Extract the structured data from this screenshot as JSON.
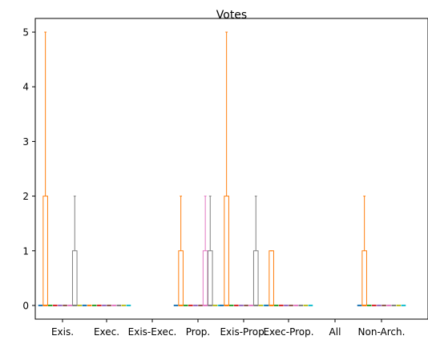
{
  "chart_data": {
    "type": "boxplot",
    "title": "Votes",
    "xlabel": "",
    "ylabel": "",
    "ylim": [
      -0.25,
      5.25
    ],
    "yticks": [
      0,
      1,
      2,
      3,
      4,
      5
    ],
    "grid": false,
    "categories": [
      "Exis.",
      "Exec.",
      "Exis-Exec.",
      "Prop.",
      "Exis-Prop.",
      "Exec-Prop.",
      "All",
      "Non-Arch."
    ],
    "series_colors": [
      "#1f77b4",
      "#ff7f0e",
      "#2ca02c",
      "#d62728",
      "#9467bd",
      "#8c564b",
      "#e377c2",
      "#7f7f7f",
      "#bcbd22",
      "#17becf"
    ],
    "boxes": [
      [
        {
          "min": 0,
          "q1": 0,
          "median": 0,
          "q3": 0,
          "max": 0
        },
        {
          "min": 0,
          "q1": 0,
          "median": 0,
          "q3": 2,
          "max": 5
        },
        {
          "min": 0,
          "q1": 0,
          "median": 0,
          "q3": 0,
          "max": 0
        },
        {
          "min": 0,
          "q1": 0,
          "median": 0,
          "q3": 0,
          "max": 0
        },
        {
          "min": 0,
          "q1": 0,
          "median": 0,
          "q3": 0,
          "max": 0
        },
        {
          "min": 0,
          "q1": 0,
          "median": 0,
          "q3": 0,
          "max": 0
        },
        {
          "min": 0,
          "q1": 0,
          "median": 0,
          "q3": 0,
          "max": 0
        },
        {
          "min": 0,
          "q1": 0,
          "median": 0,
          "q3": 1,
          "max": 2
        },
        {
          "min": 0,
          "q1": 0,
          "median": 0,
          "q3": 0,
          "max": 0
        },
        {
          "min": 0,
          "q1": 0,
          "median": 0,
          "q3": 0,
          "max": 0
        }
      ],
      [
        {
          "min": 0,
          "q1": 0,
          "median": 0,
          "q3": 0,
          "max": 0
        },
        {
          "min": 0,
          "q1": 0,
          "median": 0,
          "q3": 0,
          "max": 0
        },
        {
          "min": 0,
          "q1": 0,
          "median": 0,
          "q3": 0,
          "max": 0
        },
        {
          "min": 0,
          "q1": 0,
          "median": 0,
          "q3": 0,
          "max": 0
        },
        {
          "min": 0,
          "q1": 0,
          "median": 0,
          "q3": 0,
          "max": 0
        },
        {
          "min": 0,
          "q1": 0,
          "median": 0,
          "q3": 0,
          "max": 0
        },
        {
          "min": 0,
          "q1": 0,
          "median": 0,
          "q3": 0,
          "max": 0
        },
        {
          "min": 0,
          "q1": 0,
          "median": 0,
          "q3": 0,
          "max": 0
        },
        {
          "min": 0,
          "q1": 0,
          "median": 0,
          "q3": 0,
          "max": 0
        },
        {
          "min": 0,
          "q1": 0,
          "median": 0,
          "q3": 0,
          "max": 0
        }
      ],
      [],
      [
        {
          "min": 0,
          "q1": 0,
          "median": 0,
          "q3": 0,
          "max": 0
        },
        {
          "min": 0,
          "q1": 0,
          "median": 0,
          "q3": 1,
          "max": 2
        },
        {
          "min": 0,
          "q1": 0,
          "median": 0,
          "q3": 0,
          "max": 0
        },
        {
          "min": 0,
          "q1": 0,
          "median": 0,
          "q3": 0,
          "max": 0
        },
        {
          "min": 0,
          "q1": 0,
          "median": 0,
          "q3": 0,
          "max": 0
        },
        {
          "min": 0,
          "q1": 0,
          "median": 0,
          "q3": 0,
          "max": 0
        },
        {
          "min": 0,
          "q1": 0,
          "median": 0,
          "q3": 1,
          "max": 2
        },
        {
          "min": 0,
          "q1": 0,
          "median": 0,
          "q3": 1,
          "max": 2
        },
        {
          "min": 0,
          "q1": 0,
          "median": 0,
          "q3": 0,
          "max": 0
        },
        {
          "min": 0,
          "q1": 0,
          "median": 0,
          "q3": 0,
          "max": 0
        }
      ],
      [
        {
          "min": 0,
          "q1": 0,
          "median": 0,
          "q3": 0,
          "max": 0
        },
        {
          "min": 0,
          "q1": 0,
          "median": 0,
          "q3": 2,
          "max": 5
        },
        {
          "min": 0,
          "q1": 0,
          "median": 0,
          "q3": 0,
          "max": 0
        },
        {
          "min": 0,
          "q1": 0,
          "median": 0,
          "q3": 0,
          "max": 0
        },
        {
          "min": 0,
          "q1": 0,
          "median": 0,
          "q3": 0,
          "max": 0
        },
        {
          "min": 0,
          "q1": 0,
          "median": 0,
          "q3": 0,
          "max": 0
        },
        {
          "min": 0,
          "q1": 0,
          "median": 0,
          "q3": 0,
          "max": 0
        },
        {
          "min": 0,
          "q1": 0,
          "median": 0,
          "q3": 1,
          "max": 2
        },
        {
          "min": 0,
          "q1": 0,
          "median": 0,
          "q3": 0,
          "max": 0
        },
        {
          "min": 0,
          "q1": 0,
          "median": 0,
          "q3": 0,
          "max": 0
        }
      ],
      [
        {
          "min": 0,
          "q1": 0,
          "median": 0,
          "q3": 0,
          "max": 0
        },
        {
          "min": 0,
          "q1": 0,
          "median": 0,
          "q3": 1,
          "max": 1
        },
        {
          "min": 0,
          "q1": 0,
          "median": 0,
          "q3": 0,
          "max": 0
        },
        {
          "min": 0,
          "q1": 0,
          "median": 0,
          "q3": 0,
          "max": 0
        },
        {
          "min": 0,
          "q1": 0,
          "median": 0,
          "q3": 0,
          "max": 0
        },
        {
          "min": 0,
          "q1": 0,
          "median": 0,
          "q3": 0,
          "max": 0
        },
        {
          "min": 0,
          "q1": 0,
          "median": 0,
          "q3": 0,
          "max": 0
        },
        {
          "min": 0,
          "q1": 0,
          "median": 0,
          "q3": 0,
          "max": 0
        },
        {
          "min": 0,
          "q1": 0,
          "median": 0,
          "q3": 0,
          "max": 0
        },
        {
          "min": 0,
          "q1": 0,
          "median": 0,
          "q3": 0,
          "max": 0
        }
      ],
      [],
      [
        {
          "min": 0,
          "q1": 0,
          "median": 0,
          "q3": 0,
          "max": 0
        },
        {
          "min": 0,
          "q1": 0,
          "median": 0,
          "q3": 1,
          "max": 2
        },
        {
          "min": 0,
          "q1": 0,
          "median": 0,
          "q3": 0,
          "max": 0
        },
        {
          "min": 0,
          "q1": 0,
          "median": 0,
          "q3": 0,
          "max": 0
        },
        {
          "min": 0,
          "q1": 0,
          "median": 0,
          "q3": 0,
          "max": 0
        },
        {
          "min": 0,
          "q1": 0,
          "median": 0,
          "q3": 0,
          "max": 0
        },
        {
          "min": 0,
          "q1": 0,
          "median": 0,
          "q3": 0,
          "max": 0
        },
        {
          "min": 0,
          "q1": 0,
          "median": 0,
          "q3": 0,
          "max": 0
        },
        {
          "min": 0,
          "q1": 0,
          "median": 0,
          "q3": 0,
          "max": 0
        },
        {
          "min": 0,
          "q1": 0,
          "median": 0,
          "q3": 0,
          "max": 0
        }
      ]
    ]
  }
}
